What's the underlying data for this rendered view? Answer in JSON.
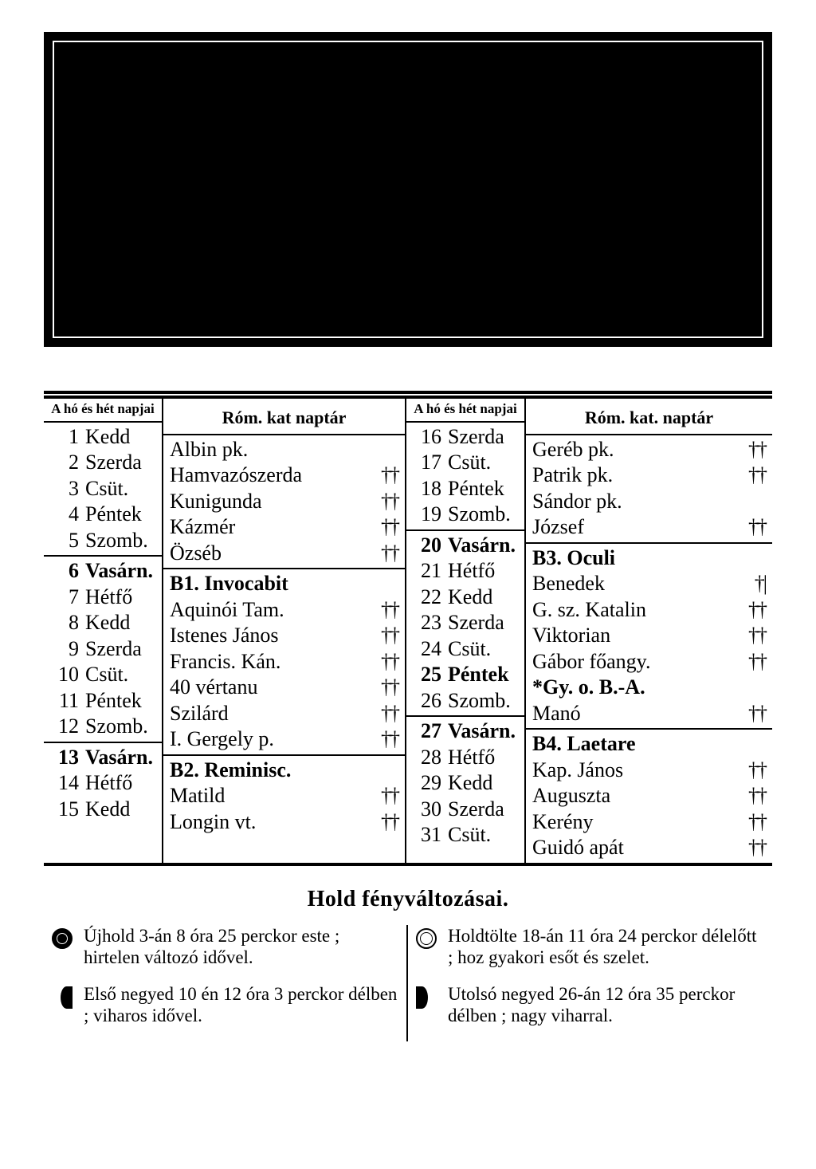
{
  "headers": {
    "days": "A\nhó és hét\nnapjai",
    "feast_left": "Róm. kat naptár",
    "feast_right": "Róm. kat. naptár"
  },
  "left": {
    "block1": {
      "days": [
        {
          "n": "1",
          "d": "Kedd"
        },
        {
          "n": "2",
          "d": "Szerda"
        },
        {
          "n": "3",
          "d": "Csüt."
        },
        {
          "n": "4",
          "d": "Péntek"
        },
        {
          "n": "5",
          "d": "Szomb."
        }
      ],
      "feasts": [
        {
          "t": "Albin pk.",
          "m": ""
        },
        {
          "t": "Hamvazószerda",
          "m": "††"
        },
        {
          "t": "Kunigunda",
          "m": "††"
        },
        {
          "t": "Kázmér",
          "m": "††"
        },
        {
          "t": "Özséb",
          "m": "††"
        }
      ]
    },
    "block2": {
      "days": [
        {
          "n": "6",
          "d": "Vasárn.",
          "b": true
        },
        {
          "n": "7",
          "d": "Hétfő"
        },
        {
          "n": "8",
          "d": "Kedd"
        },
        {
          "n": "9",
          "d": "Szerda"
        },
        {
          "n": "10",
          "d": "Csüt."
        },
        {
          "n": "11",
          "d": "Péntek"
        },
        {
          "n": "12",
          "d": "Szomb."
        }
      ],
      "feasts": [
        {
          "t": "B1. Invocabit",
          "m": "",
          "b": true
        },
        {
          "t": "Aquinói Tam.",
          "m": "††"
        },
        {
          "t": "Istenes János",
          "m": "††"
        },
        {
          "t": "Francis. Kán.",
          "m": "††"
        },
        {
          "t": "40 vértanu",
          "m": "††"
        },
        {
          "t": "Szilárd",
          "m": "††"
        },
        {
          "t": "I. Gergely p.",
          "m": "††"
        }
      ]
    },
    "block3": {
      "days": [
        {
          "n": "13",
          "d": "Vasárn.",
          "b": true
        },
        {
          "n": "14",
          "d": "Hétfő"
        },
        {
          "n": "15",
          "d": "Kedd"
        }
      ],
      "feasts": [
        {
          "t": "B2. Reminisc.",
          "m": "",
          "b": true
        },
        {
          "t": "Matild",
          "m": "††"
        },
        {
          "t": "Longin vt.",
          "m": "††"
        }
      ]
    }
  },
  "right": {
    "block1": {
      "days": [
        {
          "n": "16",
          "d": "Szerda"
        },
        {
          "n": "17",
          "d": "Csüt."
        },
        {
          "n": "18",
          "d": "Péntek"
        },
        {
          "n": "19",
          "d": "Szomb."
        }
      ],
      "feasts": [
        {
          "t": "Geréb pk.",
          "m": "††"
        },
        {
          "t": "Patrik pk.",
          "m": "††"
        },
        {
          "t": "Sándor pk.",
          "m": ""
        },
        {
          "t": "József",
          "m": "††"
        }
      ]
    },
    "block2": {
      "days": [
        {
          "n": "20",
          "d": "Vasárn.",
          "b": true
        },
        {
          "n": "21",
          "d": "Hétfő"
        },
        {
          "n": "22",
          "d": "Kedd"
        },
        {
          "n": "23",
          "d": "Szerda"
        },
        {
          "n": "24",
          "d": "Csüt."
        },
        {
          "n": "25",
          "d": "Péntek",
          "b": true
        },
        {
          "n": "26",
          "d": "Szomb."
        }
      ],
      "feasts": [
        {
          "t": "B3. Oculi",
          "m": "",
          "b": true
        },
        {
          "t": "Benedek",
          "m": "†|"
        },
        {
          "t": "G. sz. Katalin",
          "m": "††"
        },
        {
          "t": "Viktorian",
          "m": "††"
        },
        {
          "t": "Gábor főangy.",
          "m": "††"
        },
        {
          "t": "*Gy. o. B.-A.",
          "m": "",
          "b": true
        },
        {
          "t": "Manó",
          "m": "††"
        }
      ]
    },
    "block3": {
      "days": [
        {
          "n": "27",
          "d": "Vasárn.",
          "b": true
        },
        {
          "n": "28",
          "d": "Hétfő"
        },
        {
          "n": "29",
          "d": "Kedd"
        },
        {
          "n": "30",
          "d": "Szerda"
        },
        {
          "n": "31",
          "d": "Csüt."
        }
      ],
      "feasts": [
        {
          "t": "B4. Laetare",
          "m": "",
          "b": true
        },
        {
          "t": "Kap. János",
          "m": "††"
        },
        {
          "t": "Auguszta",
          "m": "††"
        },
        {
          "t": "Kerény",
          "m": "††"
        },
        {
          "t": "Guidó apát",
          "m": "††"
        }
      ]
    }
  },
  "moon": {
    "title": "Hold fényváltozásai.",
    "items": [
      {
        "phase": "new",
        "text": "Újhold 3-án 8 óra 25 perckor este ; hirtelen változó idővel."
      },
      {
        "phase": "first",
        "text": "Első negyed 10 én 12 óra 3 perckor délben ; viharos idővel."
      },
      {
        "phase": "full",
        "text": "Holdtölte 18-án 11 óra 24 perckor délelőtt ; hoz gyakori esőt és szelet."
      },
      {
        "phase": "last",
        "text": "Utolsó negyed 26-án 12 óra 35 perckor délben ; nagy viharral."
      }
    ]
  }
}
